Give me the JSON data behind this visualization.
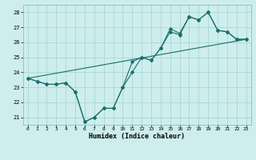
{
  "xlabel": "Humidex (Indice chaleur)",
  "background_color": "#cdeeed",
  "grid_color": "#aad6d4",
  "line_color": "#1a6e6a",
  "xlim": [
    -0.5,
    23.5
  ],
  "ylim": [
    20.5,
    28.5
  ],
  "xticks": [
    0,
    1,
    2,
    3,
    4,
    5,
    6,
    7,
    8,
    9,
    10,
    11,
    12,
    13,
    14,
    15,
    16,
    17,
    18,
    19,
    20,
    21,
    22,
    23
  ],
  "yticks": [
    21,
    22,
    23,
    24,
    25,
    26,
    27,
    28
  ],
  "line1_x": [
    0,
    1,
    2,
    3,
    4,
    5,
    6,
    7,
    8,
    9,
    10,
    11,
    12,
    13,
    14,
    15,
    16,
    17,
    18,
    19,
    20,
    21,
    22,
    23
  ],
  "line1_y": [
    23.6,
    23.4,
    23.2,
    23.2,
    23.3,
    22.7,
    20.7,
    21.0,
    21.6,
    21.6,
    23.0,
    24.0,
    25.0,
    24.8,
    25.6,
    26.7,
    26.5,
    27.7,
    27.5,
    28.0,
    26.8,
    26.7,
    26.2,
    26.2
  ],
  "line2_x": [
    0,
    1,
    2,
    3,
    4,
    5,
    6,
    7,
    8,
    9,
    10,
    11,
    12,
    13,
    14,
    15,
    16,
    17,
    18,
    19,
    20,
    21,
    22,
    23
  ],
  "line2_y": [
    23.6,
    23.4,
    23.2,
    23.2,
    23.3,
    22.7,
    20.7,
    21.0,
    21.6,
    21.6,
    23.0,
    24.7,
    25.0,
    24.8,
    25.6,
    26.9,
    26.6,
    27.7,
    27.5,
    28.0,
    26.8,
    26.7,
    26.2,
    26.2
  ],
  "line3_x": [
    0,
    23
  ],
  "line3_y": [
    23.6,
    26.2
  ]
}
